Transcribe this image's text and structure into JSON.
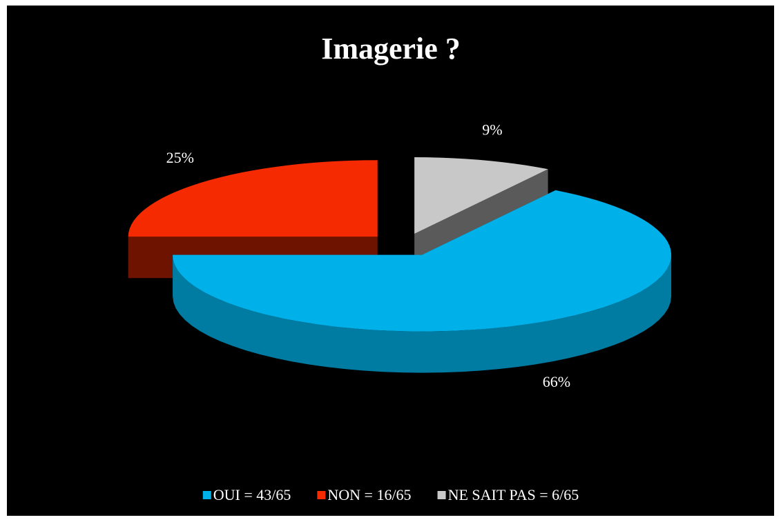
{
  "chart_data": {
    "type": "pie",
    "title": "Imagerie ?",
    "categories": [
      "OUI = 43/65",
      "NON = 16/65",
      "NE SAIT PAS = 6/65"
    ],
    "values": [
      66,
      25,
      9
    ],
    "value_labels": [
      "66%",
      "25%",
      "9%"
    ],
    "colors": [
      "#00b0e8",
      "#f52a00",
      "#c8c8c8"
    ],
    "legend": "bottom"
  }
}
